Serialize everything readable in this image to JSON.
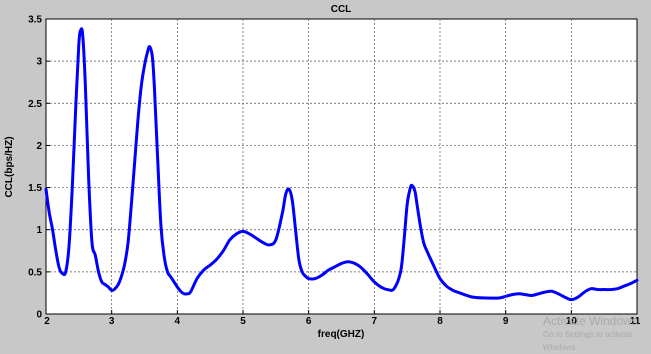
{
  "chart_data": {
    "type": "line",
    "title": "CCL",
    "xlabel": "freq(GHZ)",
    "ylabel": "CCL(bps/HZ)",
    "xlim": [
      2,
      11
    ],
    "ylim": [
      0,
      3.5
    ],
    "xticks": [
      "2",
      "3",
      "4",
      "5",
      "6",
      "7",
      "8",
      "9",
      "10",
      "11"
    ],
    "yticks": [
      "0",
      "0.5",
      "1",
      "1.5",
      "2",
      "2.5",
      "3",
      "3.5"
    ],
    "grid": true,
    "series": [
      {
        "color": "#0000ff",
        "x": [
          2.0,
          2.05,
          2.1,
          2.15,
          2.2,
          2.25,
          2.3,
          2.35,
          2.4,
          2.45,
          2.5,
          2.53,
          2.56,
          2.6,
          2.65,
          2.7,
          2.75,
          2.8,
          2.85,
          2.9,
          2.95,
          3.0,
          3.05,
          3.1,
          3.15,
          3.2,
          3.25,
          3.3,
          3.35,
          3.4,
          3.45,
          3.5,
          3.55,
          3.58,
          3.62,
          3.65,
          3.7,
          3.75,
          3.8,
          3.85,
          3.9,
          3.95,
          4.0,
          4.05,
          4.1,
          4.15,
          4.2,
          4.3,
          4.4,
          4.5,
          4.6,
          4.7,
          4.8,
          4.9,
          5.0,
          5.1,
          5.2,
          5.3,
          5.4,
          5.5,
          5.6,
          5.65,
          5.7,
          5.75,
          5.8,
          5.85,
          5.9,
          5.95,
          6.0,
          6.1,
          6.2,
          6.3,
          6.4,
          6.5,
          6.6,
          6.7,
          6.8,
          6.9,
          7.0,
          7.1,
          7.2,
          7.3,
          7.4,
          7.45,
          7.5,
          7.55,
          7.58,
          7.62,
          7.65,
          7.7,
          7.75,
          7.8,
          7.9,
          8.0,
          8.1,
          8.2,
          8.3,
          8.5,
          8.7,
          8.9,
          9.0,
          9.1,
          9.2,
          9.3,
          9.4,
          9.5,
          9.6,
          9.7,
          9.8,
          9.9,
          10.0,
          10.1,
          10.2,
          10.3,
          10.4,
          10.5,
          10.6,
          10.7,
          10.8,
          10.9,
          11.0
        ],
        "y": [
          1.48,
          1.2,
          1.0,
          0.75,
          0.55,
          0.48,
          0.5,
          0.8,
          1.5,
          2.4,
          3.2,
          3.37,
          3.3,
          2.7,
          1.6,
          0.85,
          0.7,
          0.5,
          0.38,
          0.35,
          0.32,
          0.28,
          0.3,
          0.35,
          0.45,
          0.6,
          0.85,
          1.3,
          1.8,
          2.3,
          2.7,
          2.95,
          3.12,
          3.17,
          3.05,
          2.7,
          1.85,
          1.05,
          0.68,
          0.5,
          0.44,
          0.38,
          0.32,
          0.27,
          0.24,
          0.24,
          0.26,
          0.42,
          0.52,
          0.58,
          0.65,
          0.75,
          0.88,
          0.95,
          0.98,
          0.95,
          0.9,
          0.85,
          0.82,
          0.88,
          1.2,
          1.42,
          1.48,
          1.35,
          1.0,
          0.65,
          0.5,
          0.45,
          0.42,
          0.42,
          0.46,
          0.52,
          0.56,
          0.6,
          0.62,
          0.6,
          0.55,
          0.47,
          0.38,
          0.32,
          0.29,
          0.3,
          0.5,
          0.85,
          1.3,
          1.5,
          1.52,
          1.45,
          1.3,
          1.05,
          0.85,
          0.75,
          0.58,
          0.42,
          0.33,
          0.28,
          0.25,
          0.2,
          0.19,
          0.19,
          0.21,
          0.23,
          0.24,
          0.23,
          0.22,
          0.24,
          0.26,
          0.27,
          0.24,
          0.2,
          0.17,
          0.2,
          0.26,
          0.3,
          0.29,
          0.29,
          0.29,
          0.3,
          0.33,
          0.36,
          0.4
        ]
      }
    ]
  },
  "watermark": {
    "line1": "Activate Windows",
    "line2": "Go to Settings to activate Windows."
  }
}
